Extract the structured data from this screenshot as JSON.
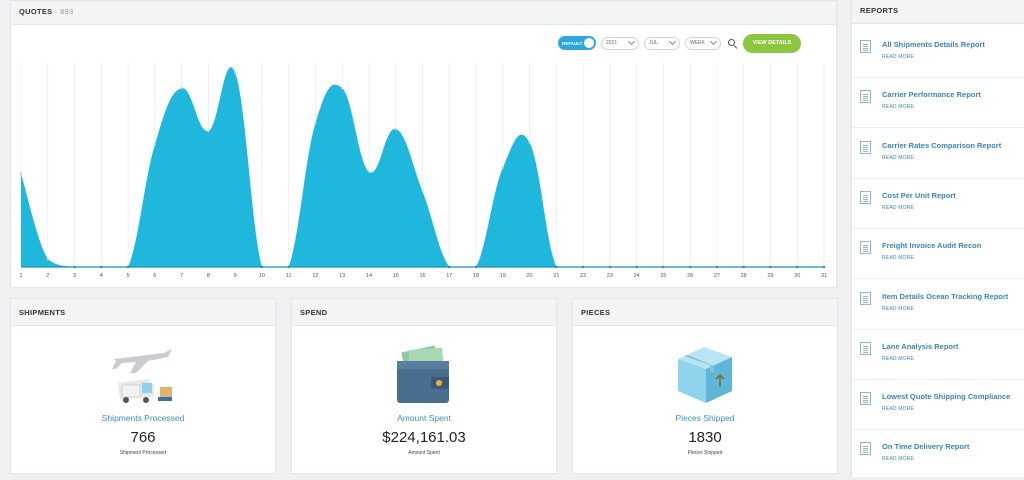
{
  "quotes": {
    "title": "QUOTES",
    "count": "893",
    "toggle_label": "DEFAULT",
    "year": "2021",
    "month": "JUL",
    "period": "WEEK",
    "view_details_label": "VIEW DETAILS"
  },
  "chart_data": {
    "type": "area",
    "x": [
      1,
      2,
      3,
      4,
      5,
      6,
      7,
      8,
      9,
      10,
      11,
      12,
      13,
      14,
      15,
      16,
      17,
      18,
      19,
      20,
      21,
      22,
      23,
      24,
      25,
      26,
      27,
      28,
      29,
      30,
      31
    ],
    "values": [
      48,
      4,
      0,
      0,
      0,
      63,
      92,
      70,
      100,
      0,
      0,
      74,
      92,
      49,
      71,
      39,
      0,
      0,
      51,
      64,
      0,
      0,
      0,
      0,
      0,
      0,
      0,
      0,
      0,
      0,
      0
    ],
    "ylim": [
      0,
      105
    ],
    "colors": {
      "fill": "#1fb8dc",
      "grid": "#e8e8e8",
      "axis": "#1e8fb0"
    }
  },
  "cards": [
    {
      "title": "SHIPMENTS",
      "caption": "Shipments Processed",
      "value": "766",
      "sub": "Shipment Processed",
      "icon": "cargo-plane-truck-icon"
    },
    {
      "title": "SPEND",
      "caption": "Amount Spent",
      "value": "$224,161.03",
      "sub": "Amount Spent",
      "icon": "wallet-icon"
    },
    {
      "title": "PIECES",
      "caption": "Pieces Shipped",
      "value": "1830",
      "sub": "Pieces Shipped",
      "icon": "package-box-icon"
    }
  ],
  "reports": {
    "title": "REPORTS",
    "read_more": "READ MORE",
    "items": [
      "All Shipments Details Report",
      "Carrier Performance Report",
      "Carrier Rates Comparison Report",
      "Cost Per Unit Report",
      "Freight Invoice Audit Recon",
      "Item Details Ocean Tracking Report",
      "Lane Analysis Report",
      "Lowest Quote Shipping Compliance",
      "On Time Delivery Report"
    ]
  }
}
